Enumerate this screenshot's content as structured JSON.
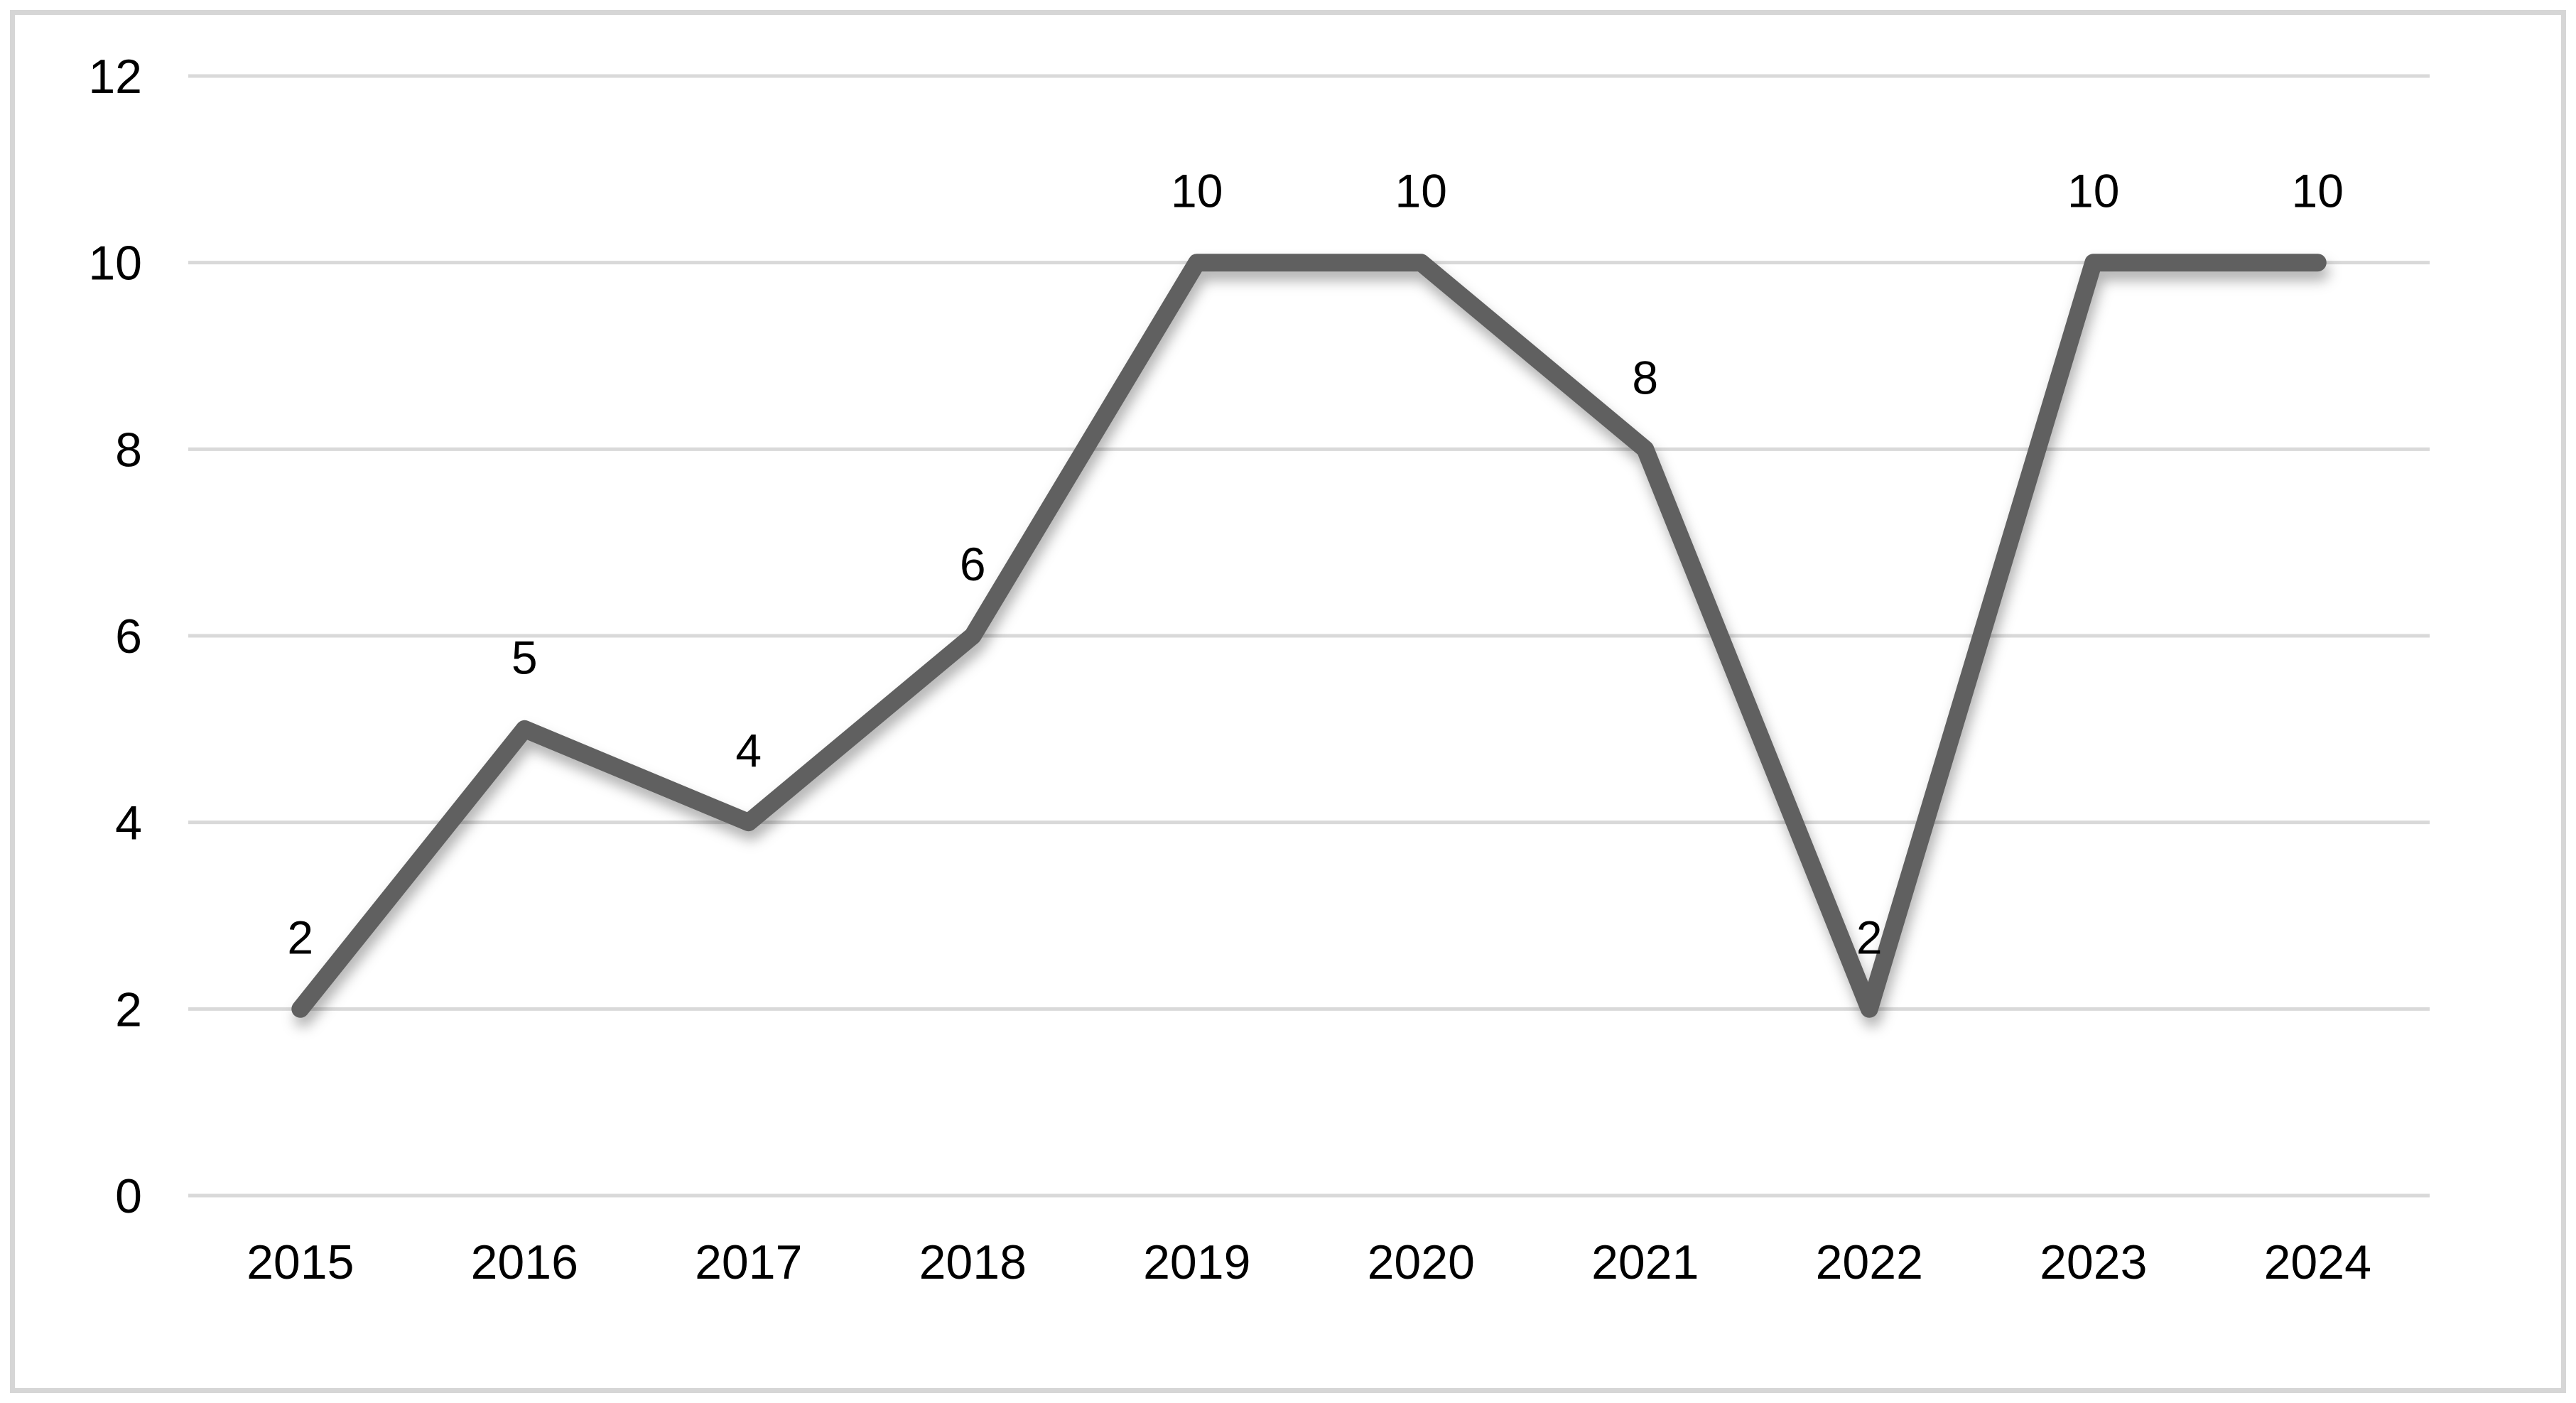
{
  "chart_data": {
    "type": "line",
    "title": "",
    "xlabel": "",
    "ylabel": "",
    "categories": [
      "2015",
      "2016",
      "2017",
      "2018",
      "2019",
      "2020",
      "2021",
      "2022",
      "2023",
      "2024"
    ],
    "values": [
      2,
      5,
      4,
      6,
      10,
      10,
      8,
      2,
      10,
      10
    ],
    "data_labels": [
      "2",
      "5",
      "4",
      "6",
      "10",
      "10",
      "8",
      "2",
      "10",
      "10"
    ],
    "y_ticks": [
      "0",
      "2",
      "4",
      "6",
      "8",
      "10",
      "12"
    ],
    "ylim": [
      0,
      12
    ],
    "ytick_step": 2,
    "grid": true,
    "legend": false,
    "markers": false,
    "colors": {
      "line": "#606060",
      "gridline": "#D9D9D9",
      "tick_label": "#000000",
      "data_label": "#000000",
      "background": "#FFFFFF",
      "frame_border": "#D6D6D6"
    }
  }
}
